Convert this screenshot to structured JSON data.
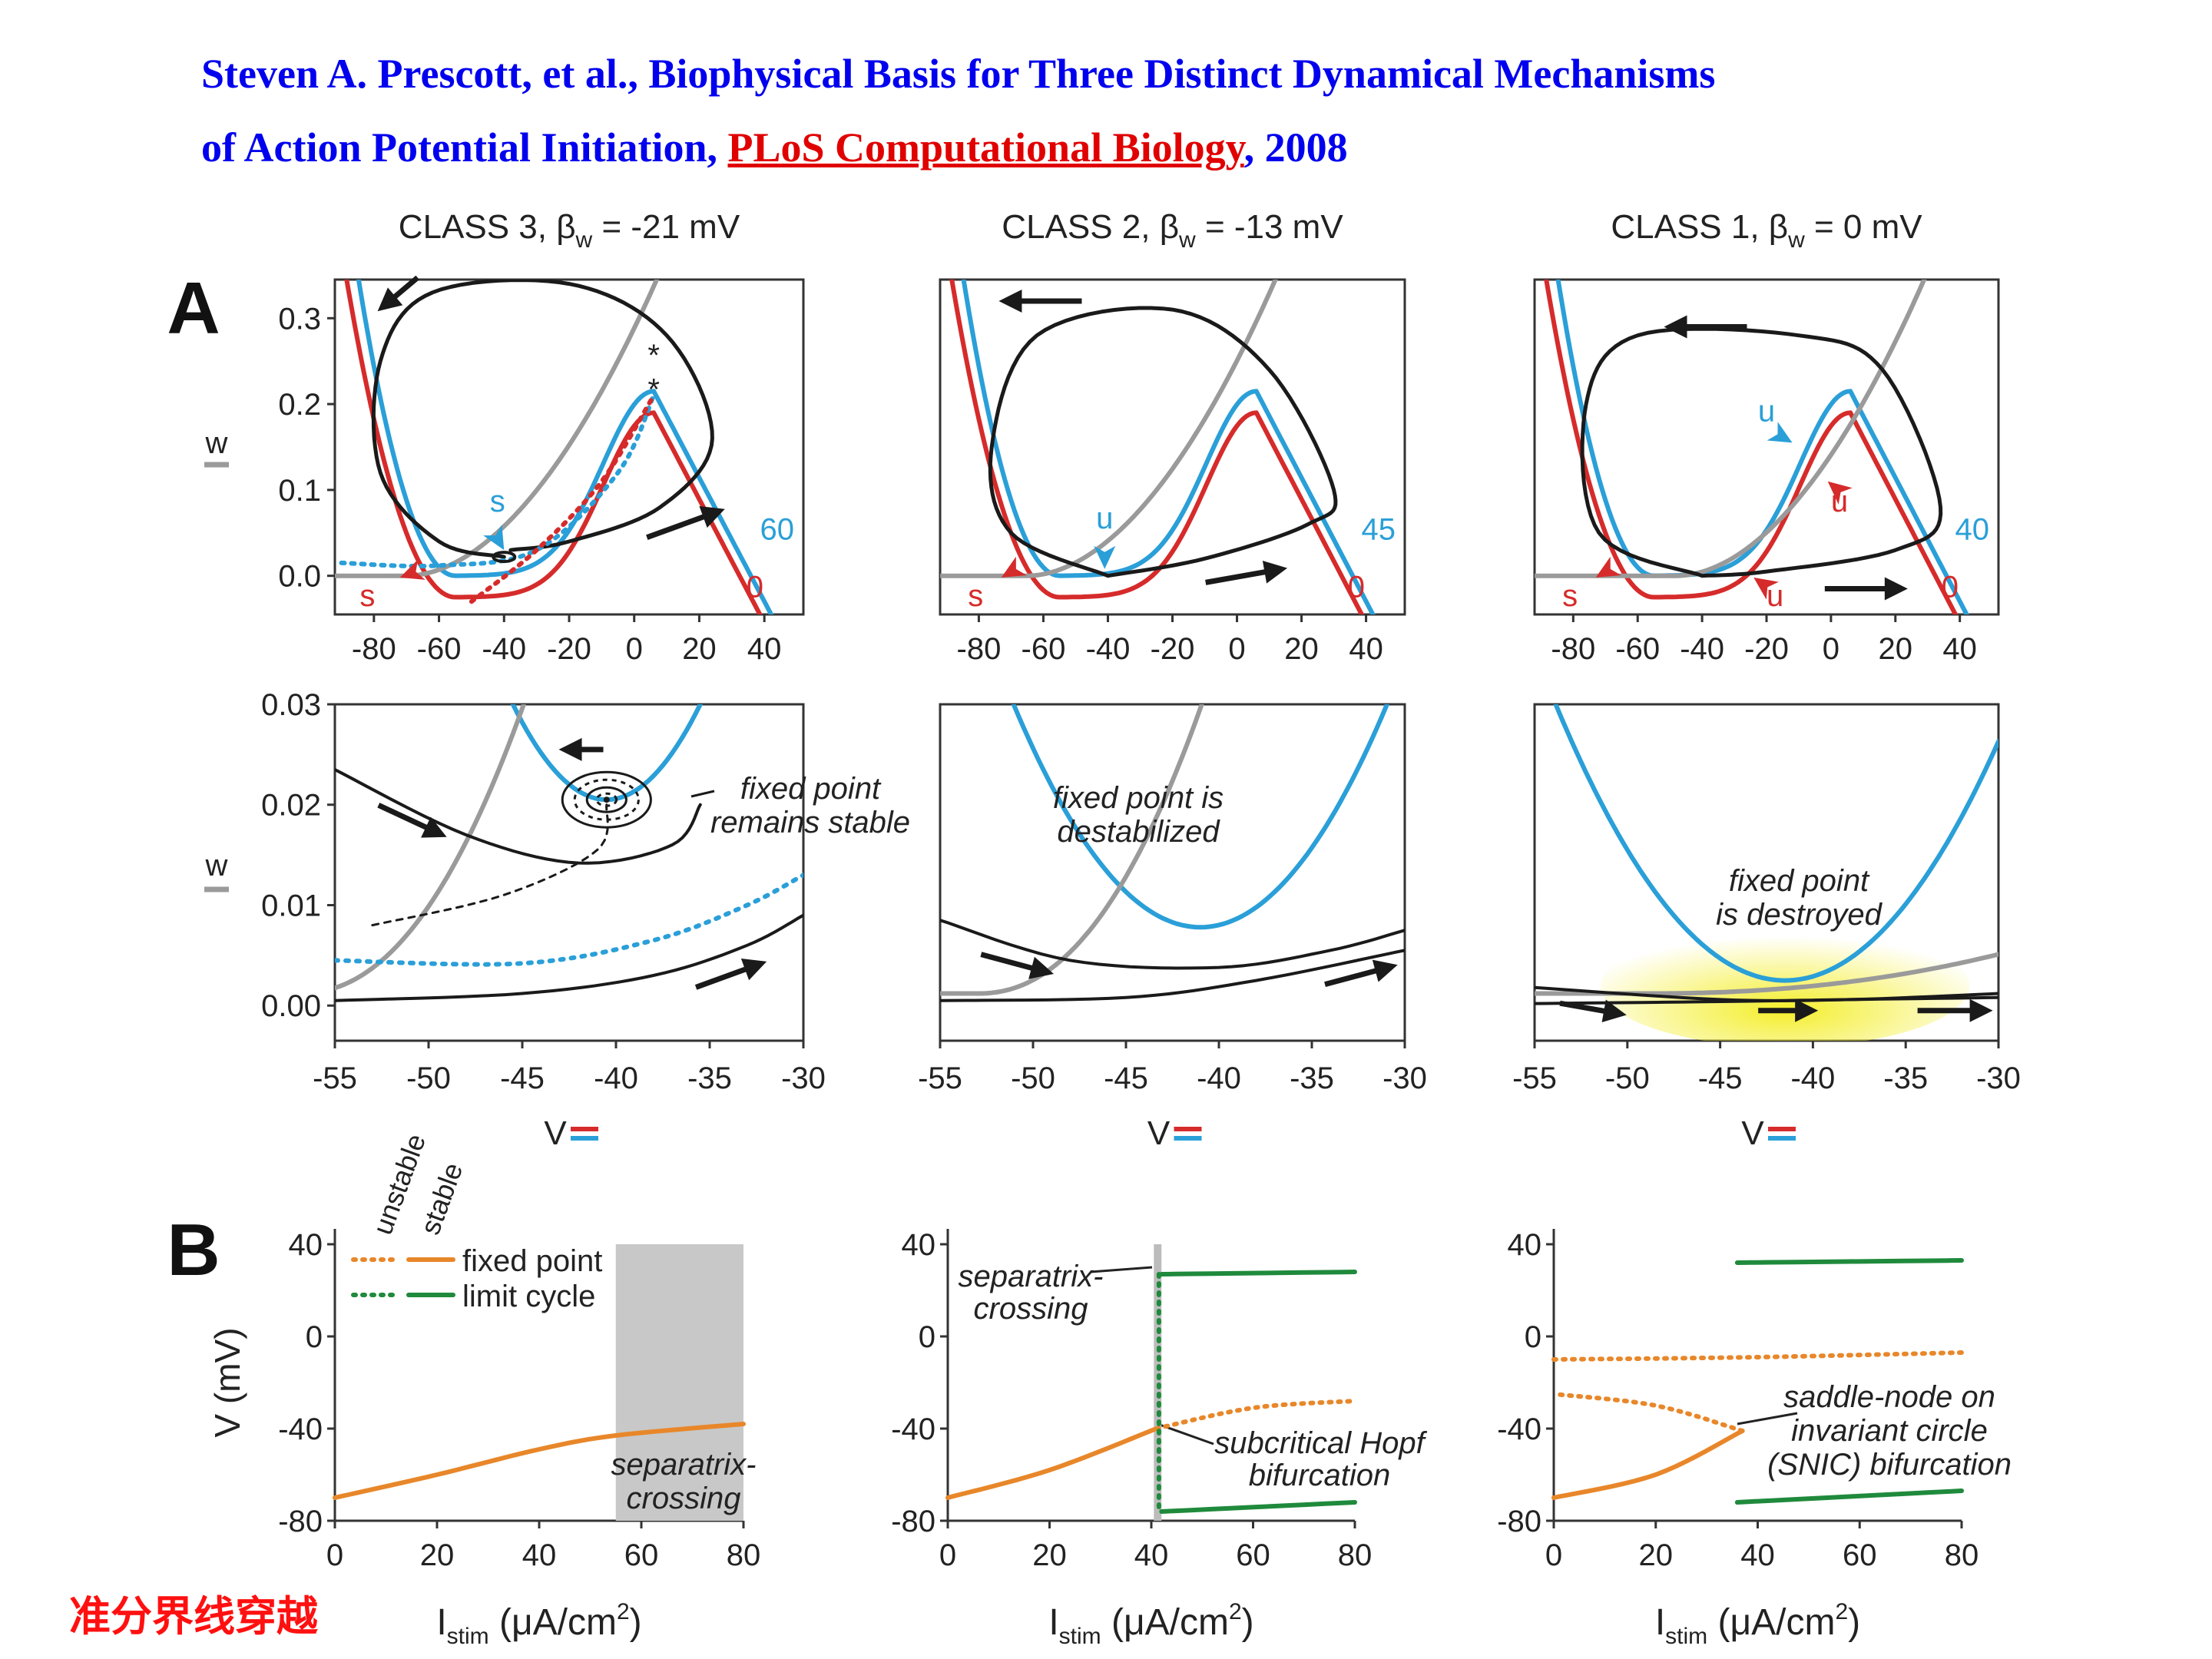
{
  "header": {
    "line1": "Steven A. Prescott, et al., Biophysical Basis for Three Distinct Dynamical Mechanisms",
    "line2_pre": "of Action Potential Initiation, ",
    "journal": "PLoS Computational Biology",
    "line2_post": ", 2008"
  },
  "panel_labels": {
    "a": "A",
    "b": "B"
  },
  "colors": {
    "blue": "#2a9fd8",
    "red": "#d62b2b",
    "gray": "#9a9a9a",
    "black": "#1a1a1a",
    "orange": "#e8872a",
    "green": "#1f8a3c",
    "highlight": "#f4ee2a"
  },
  "columns": [
    {
      "title": "CLASS 3, βw = -21 mV",
      "title_pre": "CLASS 3, β",
      "title_sub": "w",
      "title_post": " = -21 mV",
      "top_labels": {
        "blue_level": "60",
        "red_level": "0",
        "blue_point": "s",
        "red_point": "s"
      },
      "mid_annotation": [
        "fixed point",
        "remains stable"
      ]
    },
    {
      "title": "CLASS 2, βw = -13 mV",
      "title_pre": "CLASS 2, β",
      "title_sub": "w",
      "title_post": " = -13 mV",
      "top_labels": {
        "blue_level": "45",
        "red_level": "0",
        "blue_point": "u",
        "red_point": "s"
      },
      "mid_annotation": [
        "fixed point is",
        "destabilized"
      ]
    },
    {
      "title": "CLASS 1, βw = 0 mV",
      "title_pre": "CLASS 1, β",
      "title_sub": "w",
      "title_post": " = 0 mV",
      "top_labels": {
        "blue_level": "40",
        "red_level": "0",
        "blue_point": "u",
        "red_point": "s",
        "red_point_2": "u",
        "red_point_3": "u"
      },
      "mid_annotation": [
        "fixed point",
        "is destroyed"
      ]
    }
  ],
  "axes": {
    "top_y_label": "w",
    "top_y_ticks": [
      "0.3",
      "0.2",
      "0.1",
      "0.0"
    ],
    "top_x_ticks": [
      "-80",
      "-60",
      "-40",
      "-20",
      "0",
      "20",
      "40"
    ],
    "mid_y_label": "w",
    "mid_y_ticks": [
      "0.03",
      "0.02",
      "0.01",
      "0.00"
    ],
    "mid_x_ticks": [
      "-55",
      "-50",
      "-45",
      "-40",
      "-35",
      "-30"
    ],
    "mid_x_label": "V",
    "b_y_label": "V (mV)",
    "b_y_ticks": [
      "40",
      "0",
      "-40",
      "-80"
    ],
    "b_x_ticks": [
      "0",
      "20",
      "40",
      "60",
      "80"
    ],
    "b_x_label_pre": "I",
    "b_x_label_sub": "stim",
    "b_x_label_post": " (μA/cm",
    "b_x_label_sup": "2",
    "b_x_label_end": ")"
  },
  "legend": {
    "unstable": "unstable",
    "stable": "stable",
    "fixed_point": "fixed point",
    "limit_cycle": "limit cycle"
  },
  "b_annotations": {
    "class3": [
      "separatrix-",
      "crossing"
    ],
    "class2_sep": [
      "separatrix-",
      "crossing"
    ],
    "class2_hopf": [
      "subcritical Hopf",
      "bifurcation"
    ],
    "class1": [
      "saddle-node on",
      "invariant circle",
      "(SNIC) bifurcation"
    ]
  },
  "chart_data": [
    {
      "type": "line",
      "title": "CLASS 3, βw = -21 mV",
      "xlabel": "Istim (μA/cm2)",
      "ylabel": "V (mV)",
      "xlim": [
        0,
        80
      ],
      "ylim": [
        -80,
        40
      ],
      "series": [
        {
          "name": "fixed point",
          "style": "stable",
          "x": [
            0,
            20,
            40,
            55,
            80
          ],
          "y": [
            -70,
            -60,
            -49,
            -43,
            -38
          ]
        }
      ],
      "shaded_region": [
        55,
        80
      ]
    },
    {
      "type": "line",
      "title": "CLASS 2, βw = -13 mV",
      "xlabel": "Istim (μA/cm2)",
      "ylabel": "V (mV)",
      "xlim": [
        0,
        80
      ],
      "ylim": [
        -80,
        40
      ],
      "series": [
        {
          "name": "fixed point",
          "style": "stable",
          "x": [
            0,
            20,
            41
          ],
          "y": [
            -70,
            -58,
            -40
          ]
        },
        {
          "name": "fixed point",
          "style": "unstable",
          "x": [
            41,
            60,
            80
          ],
          "y": [
            -40,
            -31,
            -28
          ]
        },
        {
          "name": "limit cycle",
          "style": "stable",
          "x": [
            42,
            80
          ],
          "y": [
            27,
            28
          ]
        },
        {
          "name": "limit cycle",
          "style": "stable",
          "x": [
            42,
            80
          ],
          "y": [
            -76,
            -72
          ]
        }
      ],
      "shaded_region": [
        40.5,
        42
      ]
    },
    {
      "type": "line",
      "title": "CLASS 1, βw = 0 mV",
      "xlabel": "Istim (μA/cm2)",
      "ylabel": "V (mV)",
      "xlim": [
        0,
        80
      ],
      "ylim": [
        -80,
        40
      ],
      "series": [
        {
          "name": "fixed point",
          "style": "stable",
          "x": [
            0,
            20,
            37
          ],
          "y": [
            -70,
            -60,
            -41
          ]
        },
        {
          "name": "fixed point",
          "style": "unstable",
          "x": [
            37,
            20,
            0
          ],
          "y": [
            -41,
            -30,
            -25
          ]
        },
        {
          "name": "fixed point",
          "style": "unstable",
          "x": [
            0,
            40,
            80
          ],
          "y": [
            -10,
            -9,
            -7
          ]
        },
        {
          "name": "limit cycle",
          "style": "stable",
          "x": [
            36,
            80
          ],
          "y": [
            32,
            33
          ]
        },
        {
          "name": "limit cycle",
          "style": "stable",
          "x": [
            36,
            80
          ],
          "y": [
            -72,
            -67
          ]
        }
      ]
    }
  ],
  "footnote": "准分界线穿越"
}
